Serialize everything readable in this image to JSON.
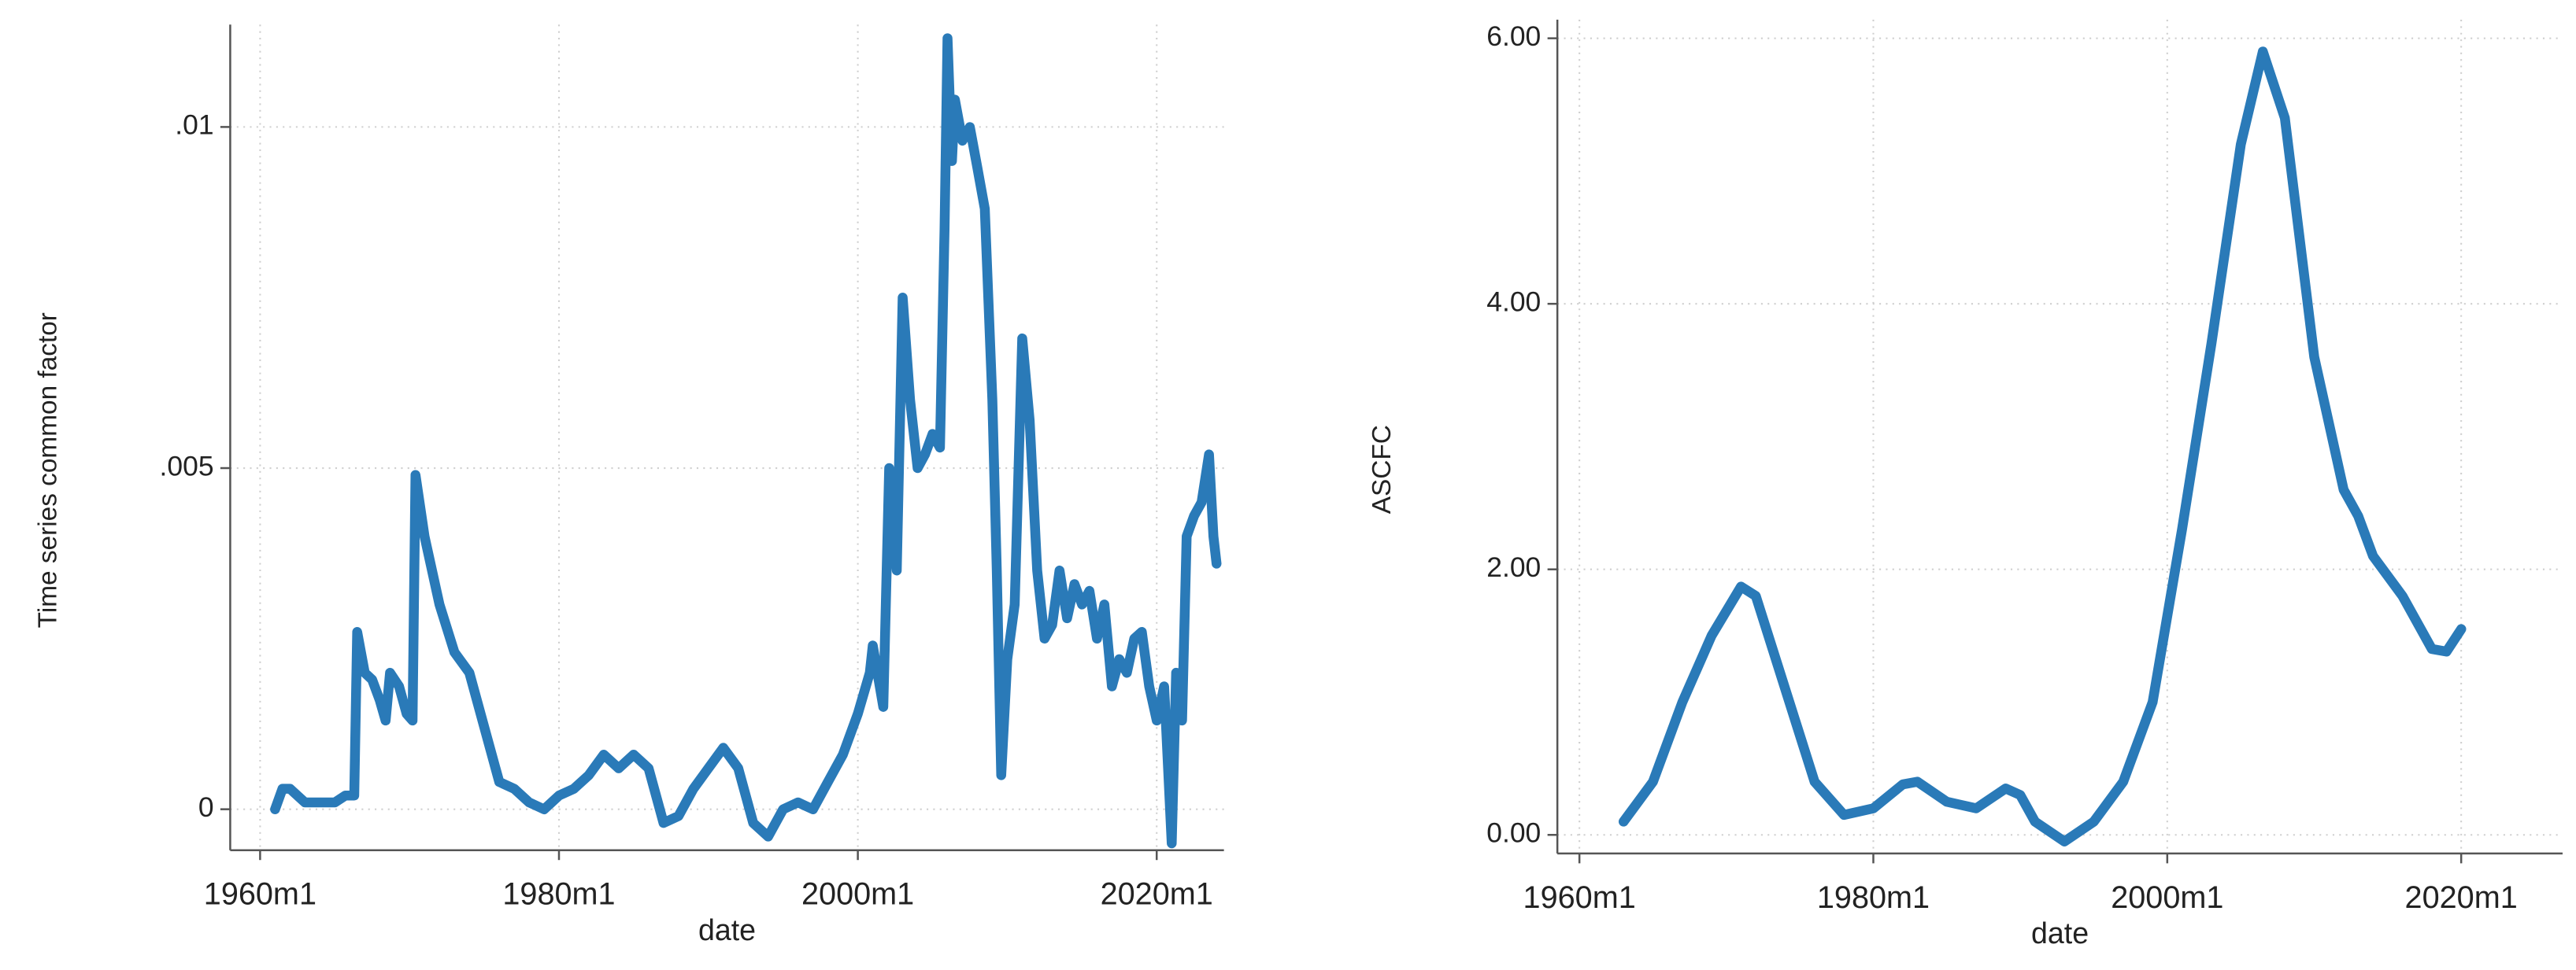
{
  "chart_data": [
    {
      "type": "line",
      "y_label": "Time series common factor",
      "x_label": "date",
      "color": "#2a7ab8",
      "grid": true,
      "xlim": [
        1958,
        2024.5
      ],
      "ylim": [
        -0.0006,
        0.0115
      ],
      "xticks": [
        {
          "value": 1960,
          "label": "1960m1"
        },
        {
          "value": 1980,
          "label": "1980m1"
        },
        {
          "value": 2000,
          "label": "2000m1"
        },
        {
          "value": 2020,
          "label": "2020m1"
        }
      ],
      "yticks": [
        0,
        {
          "value": 0.005,
          "label": ".005"
        },
        {
          "value": 0.01,
          "label": ".01"
        }
      ],
      "x": [
        1961,
        1961.5,
        1962,
        1963,
        1964,
        1965,
        1965.7,
        1966.3,
        1966.5,
        1967,
        1967.5,
        1968,
        1968.4,
        1968.7,
        1969.3,
        1969.8,
        1970.2,
        1970.4,
        1971,
        1972,
        1973,
        1974,
        1975,
        1976,
        1977,
        1978,
        1979,
        1980,
        1981,
        1982,
        1983,
        1984,
        1985,
        1986,
        1987,
        1988,
        1989,
        1990,
        1991,
        1992,
        1993,
        1994,
        1995,
        1996,
        1997,
        1998,
        1999,
        2000,
        2000.8,
        2001,
        2001.7,
        2002.1,
        2002.6,
        2003,
        2003.5,
        2004,
        2004.5,
        2005,
        2005.5,
        2005.8,
        2006,
        2006.3,
        2006.5,
        2007,
        2007.5,
        2008,
        2008.5,
        2009,
        2009.3,
        2009.6,
        2010,
        2010.5,
        2011,
        2011.5,
        2012,
        2012.5,
        2013,
        2013.5,
        2014,
        2014.5,
        2015,
        2015.5,
        2016,
        2016.5,
        2017,
        2017.5,
        2018,
        2018.5,
        2019,
        2019.5,
        2020,
        2020.5,
        2021,
        2021.3,
        2021.7,
        2022,
        2022.5,
        2023,
        2023.5,
        2023.8,
        2024
      ],
      "values": [
        0,
        0.0003,
        0.0003,
        0.0001,
        0.0001,
        0.0001,
        0.0002,
        0.0002,
        0.0026,
        0.002,
        0.0019,
        0.0016,
        0.0013,
        0.002,
        0.0018,
        0.0014,
        0.0013,
        0.0049,
        0.004,
        0.003,
        0.0023,
        0.002,
        0.0012,
        0.0004,
        0.0003,
        0.0001,
        0,
        0.0002,
        0.0003,
        0.0005,
        0.0008,
        0.0006,
        0.0008,
        0.0006,
        -0.0002,
        -0.0001,
        0.0003,
        0.0006,
        0.0009,
        0.0006,
        -0.0002,
        -0.0004,
        0,
        0.0001,
        0,
        0.0004,
        0.0008,
        0.0014,
        0.002,
        0.0024,
        0.0015,
        0.005,
        0.0035,
        0.0075,
        0.006,
        0.005,
        0.0052,
        0.0055,
        0.0053,
        0.0085,
        0.0113,
        0.0095,
        0.0104,
        0.0098,
        0.01,
        0.0094,
        0.0088,
        0.006,
        0.0035,
        0.0005,
        0.0022,
        0.003,
        0.0069,
        0.0057,
        0.0035,
        0.0025,
        0.0027,
        0.0035,
        0.0028,
        0.0033,
        0.003,
        0.0032,
        0.0025,
        0.003,
        0.0018,
        0.0022,
        0.002,
        0.0025,
        0.0026,
        0.0018,
        0.0013,
        0.0018,
        -0.0005,
        0.002,
        0.0013,
        0.004,
        0.0043,
        0.0045,
        0.0052,
        0.004,
        0.0036
      ]
    },
    {
      "type": "line",
      "y_label": "ASCFC",
      "x_label": "date",
      "color": "#2a7ab8",
      "grid": true,
      "xlim": [
        1958.5,
        2026.9
      ],
      "ylim": [
        -0.14,
        6.14
      ],
      "xticks": [
        {
          "value": 1960,
          "label": "1960m1"
        },
        {
          "value": 1980,
          "label": "1980m1"
        },
        {
          "value": 2000,
          "label": "2000m1"
        },
        {
          "value": 2020,
          "label": "2020m1"
        }
      ],
      "yticks": [
        {
          "value": 0,
          "label": "0.00"
        },
        {
          "value": 2,
          "label": "2.00"
        },
        {
          "value": 4,
          "label": "4.00"
        },
        {
          "value": 6,
          "label": "6.00"
        }
      ],
      "x": [
        1963,
        1965,
        1967,
        1969,
        1971,
        1972,
        1974,
        1976,
        1978,
        1980,
        1982,
        1983,
        1985,
        1987,
        1989,
        1990,
        1991,
        1993,
        1995,
        1997,
        1999,
        2001,
        2003,
        2005,
        2006.5,
        2008,
        2010,
        2012,
        2013,
        2014,
        2016,
        2018,
        2019,
        2020
      ],
      "values": [
        0.1,
        0.4,
        1.0,
        1.5,
        1.87,
        1.8,
        1.1,
        0.4,
        0.15,
        0.2,
        0.38,
        0.4,
        0.25,
        0.2,
        0.35,
        0.3,
        0.1,
        -0.05,
        0.1,
        0.4,
        1.0,
        2.3,
        3.7,
        5.2,
        5.9,
        5.4,
        3.6,
        2.6,
        2.4,
        2.1,
        1.8,
        1.4,
        1.38,
        1.55
      ]
    }
  ]
}
